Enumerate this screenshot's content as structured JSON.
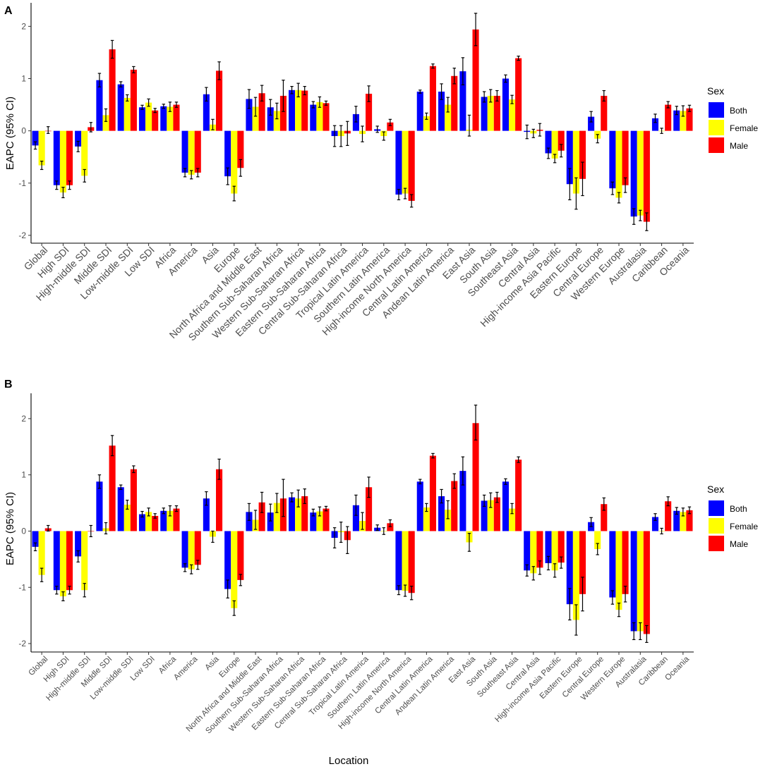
{
  "sex_legend": {
    "title": "Sex",
    "items": [
      {
        "name": "Both",
        "color": "#0000ff"
      },
      {
        "name": "Female",
        "color": "#ffff00"
      },
      {
        "name": "Male",
        "color": "#ff0000"
      }
    ]
  },
  "x_axis_title": "Location",
  "chart_data": [
    {
      "type": "bar",
      "panel": "A",
      "ylabel": "EAPC (95% CI)",
      "xlabel": "",
      "ylim": [
        -2.15,
        2.45
      ],
      "yticks": [
        -2,
        -1,
        0,
        1,
        2
      ],
      "grid": false,
      "legend_position": "right",
      "categories": [
        "Global",
        "High SDI",
        "High-middle SDI",
        "Middle SDI",
        "Low-middle SDI",
        "Low SDI",
        "Africa",
        "America",
        "Asia",
        "Europe",
        "North Africa and Middle East",
        "Southern Sub-Saharan Africa",
        "Western Sub-Saharan Africa",
        "Eastern Sub-Saharan Africa",
        "Central Sub-Saharan Africa",
        "Tropical Latin America",
        "Southern Latin America",
        "High-income North America",
        "Central Latin America",
        "Andean Latin America",
        "East Asia",
        "South Asia",
        "Southeast Asia",
        "Central Asia",
        "High-income Asia Pacific",
        "Eastern Europe",
        "Central Europe",
        "Western Europe",
        "Australasia",
        "Caribbean",
        "Oceania"
      ],
      "series": [
        {
          "name": "Both",
          "values": [
            -0.28,
            -1.04,
            -0.3,
            0.97,
            0.89,
            0.45,
            0.47,
            -0.8,
            0.7,
            -0.87,
            0.61,
            0.45,
            0.78,
            0.5,
            -0.1,
            0.32,
            0.03,
            -1.22,
            0.75,
            0.75,
            1.14,
            0.65,
            1.0,
            -0.02,
            -0.43,
            -1.02,
            0.27,
            -1.1,
            -1.64,
            0.24,
            0.39
          ],
          "ci": [
            [
              -0.35,
              -0.21
            ],
            [
              -1.12,
              -0.96
            ],
            [
              -0.4,
              -0.2
            ],
            [
              0.84,
              1.1
            ],
            [
              0.84,
              0.94
            ],
            [
              0.41,
              0.49
            ],
            [
              0.43,
              0.51
            ],
            [
              -0.88,
              -0.72
            ],
            [
              0.57,
              0.83
            ],
            [
              -1.03,
              -0.71
            ],
            [
              0.43,
              0.79
            ],
            [
              0.3,
              0.6
            ],
            [
              0.71,
              0.85
            ],
            [
              0.44,
              0.56
            ],
            [
              -0.3,
              0.1
            ],
            [
              0.17,
              0.47
            ],
            [
              -0.03,
              0.09
            ],
            [
              -1.32,
              -1.12
            ],
            [
              0.72,
              0.78
            ],
            [
              0.6,
              0.9
            ],
            [
              0.88,
              1.4
            ],
            [
              0.55,
              0.75
            ],
            [
              0.93,
              1.07
            ],
            [
              -0.15,
              0.11
            ],
            [
              -0.53,
              -0.33
            ],
            [
              -1.32,
              -0.72
            ],
            [
              0.17,
              0.37
            ],
            [
              -1.22,
              -0.98
            ],
            [
              -1.79,
              -1.49
            ],
            [
              0.16,
              0.32
            ],
            [
              0.31,
              0.47
            ]
          ]
        },
        {
          "name": "Female",
          "values": [
            -0.66,
            -1.18,
            -0.86,
            0.3,
            0.63,
            0.54,
            0.46,
            -0.84,
            0.12,
            -1.2,
            0.46,
            0.38,
            0.78,
            0.55,
            -0.1,
            -0.06,
            -0.1,
            -1.2,
            0.28,
            0.5,
            0.02,
            0.67,
            0.6,
            -0.05,
            -0.53,
            -1.2,
            -0.15,
            -1.28,
            -1.62,
            0.0,
            0.38
          ],
          "ci": [
            [
              -0.74,
              -0.58
            ],
            [
              -1.28,
              -1.08
            ],
            [
              -0.98,
              -0.74
            ],
            [
              0.18,
              0.42
            ],
            [
              0.57,
              0.69
            ],
            [
              0.47,
              0.61
            ],
            [
              0.37,
              0.55
            ],
            [
              -0.92,
              -0.76
            ],
            [
              0.02,
              0.22
            ],
            [
              -1.34,
              -1.06
            ],
            [
              0.28,
              0.64
            ],
            [
              0.23,
              0.53
            ],
            [
              0.65,
              0.91
            ],
            [
              0.45,
              0.65
            ],
            [
              -0.3,
              0.1
            ],
            [
              -0.21,
              0.09
            ],
            [
              -0.18,
              -0.02
            ],
            [
              -1.3,
              -1.1
            ],
            [
              0.22,
              0.34
            ],
            [
              0.36,
              0.64
            ],
            [
              -0.1,
              0.3
            ],
            [
              0.55,
              0.79
            ],
            [
              0.52,
              0.68
            ],
            [
              -0.13,
              0.03
            ],
            [
              -0.61,
              -0.45
            ],
            [
              -1.5,
              -0.9
            ],
            [
              -0.23,
              -0.07
            ],
            [
              -1.38,
              -1.18
            ],
            [
              -1.72,
              -1.52
            ],
            [
              -0.05,
              0.05
            ],
            [
              0.28,
              0.48
            ]
          ]
        },
        {
          "name": "Male",
          "values": [
            0.0,
            -1.04,
            0.07,
            1.56,
            1.17,
            0.39,
            0.5,
            -0.8,
            1.15,
            -0.71,
            0.72,
            0.67,
            0.77,
            0.53,
            -0.05,
            0.71,
            0.16,
            -1.34,
            1.24,
            1.05,
            1.94,
            0.67,
            1.39,
            0.02,
            -0.38,
            -0.92,
            0.67,
            -1.04,
            -1.74,
            0.5,
            0.43
          ],
          "ci": [
            [
              -0.05,
              0.08
            ],
            [
              -1.12,
              -0.96
            ],
            [
              -0.02,
              0.16
            ],
            [
              1.39,
              1.73
            ],
            [
              1.11,
              1.23
            ],
            [
              0.35,
              0.43
            ],
            [
              0.45,
              0.55
            ],
            [
              -0.88,
              -0.72
            ],
            [
              0.98,
              1.32
            ],
            [
              -0.87,
              -0.55
            ],
            [
              0.57,
              0.87
            ],
            [
              0.37,
              0.97
            ],
            [
              0.69,
              0.85
            ],
            [
              0.49,
              0.57
            ],
            [
              -0.28,
              0.18
            ],
            [
              0.56,
              0.86
            ],
            [
              0.1,
              0.22
            ],
            [
              -1.46,
              -1.22
            ],
            [
              1.2,
              1.28
            ],
            [
              0.9,
              1.2
            ],
            [
              1.63,
              2.25
            ],
            [
              0.57,
              0.77
            ],
            [
              1.35,
              1.43
            ],
            [
              -0.1,
              0.14
            ],
            [
              -0.5,
              -0.26
            ],
            [
              -1.24,
              -0.6
            ],
            [
              0.57,
              0.77
            ],
            [
              -1.18,
              -0.9
            ],
            [
              -1.91,
              -1.57
            ],
            [
              0.44,
              0.56
            ],
            [
              0.37,
              0.49
            ]
          ]
        }
      ]
    },
    {
      "type": "bar",
      "panel": "B",
      "ylabel": "EAPC (95% CI)",
      "xlabel": "Location",
      "ylim": [
        -2.15,
        2.45
      ],
      "yticks": [
        -2,
        -1,
        0,
        1,
        2
      ],
      "grid": false,
      "legend_position": "right",
      "categories": [
        "Global",
        "High SDI",
        "High-middle SDI",
        "Middle SDI",
        "Low-middle SDI",
        "Low SDI",
        "Africa",
        "America",
        "Asia",
        "Europe",
        "North Africa and Middle East",
        "Southern Sub-Saharan Africa",
        "Western Sub-Saharan Africa",
        "Eastern Sub-Saharan Africa",
        "Central Sub-Saharan Africa",
        "Tropical Latin America",
        "Southern Latin America",
        "High-income North America",
        "Central Latin America",
        "Andean Latin America",
        "East Asia",
        "South Asia",
        "Southeast Asia",
        "Central Asia",
        "High-income Asia Pacific",
        "Eastern Europe",
        "Central Europe",
        "Western Europe",
        "Australasia",
        "Caribbean",
        "Oceania"
      ],
      "series": [
        {
          "name": "Both",
          "values": [
            -0.28,
            -1.05,
            -0.45,
            0.88,
            0.78,
            0.3,
            0.36,
            -0.65,
            0.58,
            -1.03,
            0.34,
            0.33,
            0.6,
            0.33,
            -0.12,
            0.46,
            0.06,
            -1.05,
            0.88,
            0.62,
            1.07,
            0.54,
            0.88,
            -0.7,
            -0.57,
            -1.3,
            0.16,
            -1.18,
            -1.78,
            0.25,
            0.36
          ],
          "ci": [
            [
              -0.35,
              -0.21
            ],
            [
              -1.12,
              -0.98
            ],
            [
              -0.55,
              -0.35
            ],
            [
              0.76,
              1.0
            ],
            [
              0.74,
              0.82
            ],
            [
              0.25,
              0.35
            ],
            [
              0.31,
              0.41
            ],
            [
              -0.72,
              -0.58
            ],
            [
              0.46,
              0.7
            ],
            [
              -1.19,
              -0.87
            ],
            [
              0.19,
              0.49
            ],
            [
              0.18,
              0.48
            ],
            [
              0.52,
              0.68
            ],
            [
              0.27,
              0.39
            ],
            [
              -0.3,
              0.06
            ],
            [
              0.28,
              0.64
            ],
            [
              0.01,
              0.11
            ],
            [
              -1.13,
              -0.97
            ],
            [
              0.84,
              0.92
            ],
            [
              0.5,
              0.74
            ],
            [
              0.82,
              1.32
            ],
            [
              0.44,
              0.64
            ],
            [
              0.83,
              0.93
            ],
            [
              -0.8,
              -0.6
            ],
            [
              -0.69,
              -0.45
            ],
            [
              -1.58,
              -1.02
            ],
            [
              0.08,
              0.24
            ],
            [
              -1.3,
              -1.06
            ],
            [
              -1.93,
              -1.63
            ],
            [
              0.19,
              0.31
            ],
            [
              0.3,
              0.42
            ]
          ]
        },
        {
          "name": "Female",
          "values": [
            -0.78,
            -1.16,
            -1.05,
            0.05,
            0.47,
            0.34,
            0.36,
            -0.68,
            -0.1,
            -1.37,
            0.2,
            0.5,
            0.58,
            0.35,
            -0.02,
            0.18,
            0.0,
            -1.06,
            0.42,
            0.38,
            -0.2,
            0.55,
            0.4,
            -0.75,
            -0.7,
            -1.58,
            -0.32,
            -1.4,
            -1.78,
            0.0,
            0.34
          ],
          "ci": [
            [
              -0.9,
              -0.66
            ],
            [
              -1.24,
              -1.08
            ],
            [
              -1.17,
              -0.93
            ],
            [
              -0.05,
              0.15
            ],
            [
              0.39,
              0.55
            ],
            [
              0.27,
              0.41
            ],
            [
              0.27,
              0.45
            ],
            [
              -0.76,
              -0.6
            ],
            [
              -0.2,
              0.0
            ],
            [
              -1.5,
              -1.24
            ],
            [
              0.03,
              0.37
            ],
            [
              0.33,
              0.67
            ],
            [
              0.43,
              0.73
            ],
            [
              0.27,
              0.43
            ],
            [
              -0.2,
              0.16
            ],
            [
              0.03,
              0.33
            ],
            [
              -0.06,
              0.06
            ],
            [
              -1.16,
              -0.96
            ],
            [
              0.35,
              0.49
            ],
            [
              0.22,
              0.54
            ],
            [
              -0.36,
              -0.04
            ],
            [
              0.42,
              0.68
            ],
            [
              0.31,
              0.49
            ],
            [
              -0.87,
              -0.63
            ],
            [
              -0.82,
              -0.58
            ],
            [
              -1.85,
              -1.31
            ],
            [
              -0.42,
              -0.22
            ],
            [
              -1.52,
              -1.28
            ],
            [
              -1.93,
              -1.63
            ],
            [
              -0.05,
              0.05
            ],
            [
              0.27,
              0.41
            ]
          ]
        },
        {
          "name": "Male",
          "values": [
            0.05,
            -1.05,
            0.0,
            1.52,
            1.1,
            0.27,
            0.4,
            -0.6,
            1.1,
            -0.87,
            0.51,
            0.58,
            0.62,
            0.4,
            -0.16,
            0.78,
            0.14,
            -1.1,
            1.34,
            0.89,
            1.92,
            0.6,
            1.27,
            -0.65,
            -0.56,
            -1.12,
            0.48,
            -1.12,
            -1.83,
            0.53,
            0.37
          ],
          "ci": [
            [
              0.0,
              0.1
            ],
            [
              -1.12,
              -0.98
            ],
            [
              -0.1,
              0.1
            ],
            [
              1.34,
              1.7
            ],
            [
              1.04,
              1.16
            ],
            [
              0.23,
              0.31
            ],
            [
              0.35,
              0.45
            ],
            [
              -0.68,
              -0.52
            ],
            [
              0.92,
              1.28
            ],
            [
              -0.97,
              -0.77
            ],
            [
              0.33,
              0.69
            ],
            [
              0.26,
              0.92
            ],
            [
              0.49,
              0.75
            ],
            [
              0.36,
              0.44
            ],
            [
              -0.4,
              0.08
            ],
            [
              0.6,
              0.96
            ],
            [
              0.08,
              0.2
            ],
            [
              -1.22,
              -0.98
            ],
            [
              1.3,
              1.38
            ],
            [
              0.76,
              1.02
            ],
            [
              1.62,
              2.24
            ],
            [
              0.51,
              0.69
            ],
            [
              1.22,
              1.32
            ],
            [
              -0.77,
              -0.53
            ],
            [
              -0.66,
              -0.46
            ],
            [
              -1.42,
              -0.82
            ],
            [
              0.37,
              0.59
            ],
            [
              -1.26,
              -0.98
            ],
            [
              -1.98,
              -1.68
            ],
            [
              0.45,
              0.61
            ],
            [
              0.31,
              0.43
            ]
          ]
        }
      ]
    }
  ],
  "panels": [
    {
      "tag": "A",
      "ylabel": "EAPC (95% CI)"
    },
    {
      "tag": "B",
      "ylabel": "EAPC (95% CI)"
    }
  ]
}
